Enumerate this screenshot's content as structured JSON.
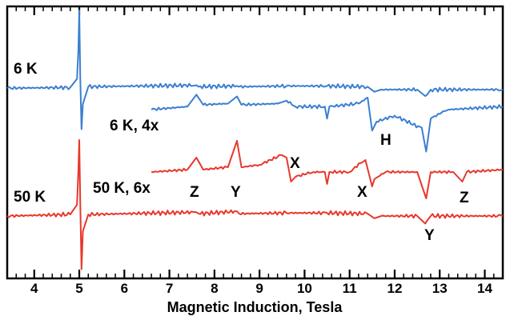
{
  "chart_data": {
    "type": "line",
    "title": "",
    "xlabel": "Magnetic Induction, Tesla",
    "ylabel": "",
    "xlim": [
      3.4,
      14.4
    ],
    "x_ticks": [
      "4",
      "5",
      "6",
      "7",
      "8",
      "9",
      "10",
      "11",
      "12",
      "13",
      "14"
    ],
    "colors": {
      "6K": "#3b7fd0",
      "50K": "#e8372c",
      "axis": "#000000"
    },
    "series": [
      {
        "name": "6 K",
        "color": "#3b7fd0",
        "x": [
          3.4,
          4.8,
          4.95,
          4.98,
          5.0,
          5.02,
          5.05,
          5.08,
          5.2,
          7.6,
          7.65,
          8.5,
          8.55,
          9.6,
          10.5,
          11.4,
          11.55,
          11.7,
          12.5,
          12.68,
          12.72,
          12.8,
          14.4
        ],
        "y": [
          0.02,
          0.03,
          0.15,
          0.55,
          1.1,
          0.2,
          -0.55,
          -0.2,
          0.04,
          0.06,
          0.04,
          0.05,
          0.04,
          0.05,
          0.05,
          0.04,
          -0.03,
          0.0,
          0.0,
          -0.09,
          -0.07,
          0.0,
          0.0
        ]
      },
      {
        "name": "6 K, 4x",
        "color": "#3b7fd0",
        "x": [
          6.6,
          7.4,
          7.6,
          7.75,
          8.3,
          8.5,
          8.6,
          9.4,
          9.6,
          9.8,
          10.45,
          10.5,
          10.55,
          11.2,
          11.4,
          11.5,
          11.6,
          12.0,
          12.6,
          12.7,
          12.8,
          13.2,
          14.4
        ],
        "y": [
          0.0,
          0.05,
          0.25,
          0.08,
          0.1,
          0.22,
          0.08,
          0.1,
          0.15,
          0.05,
          0.05,
          -0.15,
          0.05,
          0.1,
          0.2,
          -0.35,
          -0.2,
          -0.1,
          -0.3,
          -0.7,
          -0.15,
          0.0,
          0.05
        ]
      },
      {
        "name": "50 K, 6x",
        "color": "#e8372c",
        "x": [
          6.6,
          7.4,
          7.6,
          7.75,
          8.3,
          8.5,
          8.6,
          9.0,
          9.5,
          9.6,
          9.7,
          9.8,
          10.2,
          10.45,
          10.5,
          10.55,
          11.0,
          11.35,
          11.5,
          11.55,
          11.8,
          12.5,
          12.7,
          12.8,
          13.3,
          13.5,
          13.6,
          14.4
        ],
        "y": [
          0.0,
          0.05,
          0.3,
          0.05,
          0.1,
          0.65,
          0.1,
          0.15,
          0.35,
          0.3,
          -0.2,
          -0.1,
          0.0,
          0.0,
          -0.25,
          0.0,
          0.0,
          0.25,
          -0.3,
          -0.15,
          0.0,
          0.0,
          -0.55,
          0.0,
          0.0,
          -0.2,
          0.0,
          0.05
        ]
      },
      {
        "name": "50 K",
        "color": "#e8372c",
        "x": [
          3.4,
          4.8,
          4.95,
          4.98,
          5.0,
          5.02,
          5.05,
          5.08,
          5.2,
          7.6,
          7.65,
          8.5,
          8.55,
          9.6,
          10.5,
          11.4,
          11.55,
          11.7,
          12.5,
          12.68,
          12.72,
          12.8,
          14.4
        ],
        "y": [
          0.0,
          0.02,
          0.15,
          0.6,
          1.0,
          0.2,
          -0.7,
          -0.2,
          0.02,
          0.05,
          0.03,
          0.06,
          0.03,
          0.04,
          0.04,
          0.03,
          -0.03,
          0.0,
          0.0,
          -0.1,
          -0.06,
          0.0,
          0.0
        ]
      }
    ],
    "labels": {
      "l6k": "6 K",
      "l6k4x": "6 K, 4x",
      "l50k": "50 K",
      "l50k6x": "50 K, 6x",
      "H": "H",
      "Z1": "Z",
      "Y1": "Y",
      "X1": "X",
      "X2": "X",
      "Z2": "Z",
      "Y2": "Y"
    }
  }
}
